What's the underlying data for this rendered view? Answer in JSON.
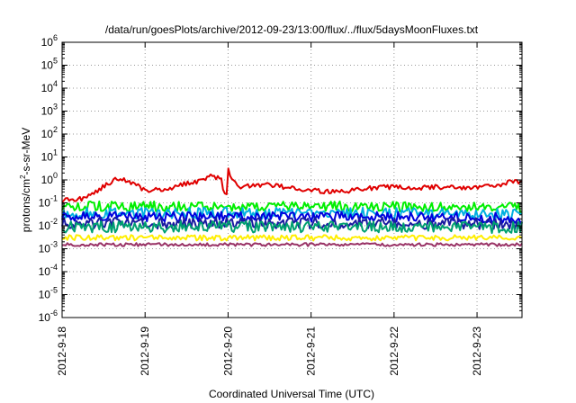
{
  "chart_data": {
    "type": "line",
    "title": "/data/run/goesPlots/archive/2012-09-23/13:00/flux/../flux/5daysMoonFluxes.txt",
    "xlabel": "Coordinated Universal Time (UTC)",
    "ylabel": "protons/cm^2-s-sr-MeV",
    "ylabel_base": "protons/cm",
    "ylabel_sup": "2",
    "ylabel_rest": "-s-sr-MeV",
    "x_scale": "time",
    "x_range": [
      "2012-09-18T00:00",
      "2012-09-23T13:00"
    ],
    "x_ticks": [
      {
        "date": "2012-09-18T00:00",
        "label": "2012-9-18"
      },
      {
        "date": "2012-09-19T00:00",
        "label": "2012-9-19"
      },
      {
        "date": "2012-09-20T00:00",
        "label": "2012-9-20"
      },
      {
        "date": "2012-09-21T00:00",
        "label": "2012-9-21"
      },
      {
        "date": "2012-09-22T00:00",
        "label": "2012-9-22"
      },
      {
        "date": "2012-09-23T00:00",
        "label": "2012-9-23"
      }
    ],
    "y_scale": "log",
    "ylim": [
      1e-06,
      1000000.0
    ],
    "y_ticks": [
      {
        "value": 1e-06,
        "base": "10",
        "exp": "-6"
      },
      {
        "value": 1e-05,
        "base": "10",
        "exp": "-5"
      },
      {
        "value": 0.0001,
        "base": "10",
        "exp": "-4"
      },
      {
        "value": 0.001,
        "base": "10",
        "exp": "-3"
      },
      {
        "value": 0.01,
        "base": "10",
        "exp": "-2"
      },
      {
        "value": 0.1,
        "base": "10",
        "exp": "-1"
      },
      {
        "value": 1,
        "base": "10",
        "exp": "0"
      },
      {
        "value": 10,
        "base": "10",
        "exp": "1"
      },
      {
        "value": 100,
        "base": "10",
        "exp": "2"
      },
      {
        "value": 1000,
        "base": "10",
        "exp": "3"
      },
      {
        "value": 10000,
        "base": "10",
        "exp": "4"
      },
      {
        "value": 100000,
        "base": "10",
        "exp": "5"
      },
      {
        "value": 1000000,
        "base": "10",
        "exp": "6"
      }
    ],
    "grid": true,
    "legend": "none",
    "series": [
      {
        "color": "#e00000",
        "noise": 0.1,
        "points": [
          [
            "2012-09-18T00:00",
            0.13
          ],
          [
            "2012-09-18T06:00",
            0.15
          ],
          [
            "2012-09-18T12:00",
            0.5
          ],
          [
            "2012-09-18T16:00",
            1.2
          ],
          [
            "2012-09-18T20:00",
            0.8
          ],
          [
            "2012-09-19T00:00",
            0.35
          ],
          [
            "2012-09-19T06:00",
            0.4
          ],
          [
            "2012-09-19T12:00",
            0.7
          ],
          [
            "2012-09-19T16:00",
            0.9
          ],
          [
            "2012-09-19T19:00",
            1.7
          ],
          [
            "2012-09-19T22:00",
            1.0
          ],
          [
            "2012-09-19T23:30",
            0.12
          ],
          [
            "2012-09-20T00:00",
            2.8
          ],
          [
            "2012-09-20T01:00",
            1.0
          ],
          [
            "2012-09-20T03:00",
            0.5
          ],
          [
            "2012-09-20T12:00",
            0.6
          ],
          [
            "2012-09-20T18:00",
            0.45
          ],
          [
            "2012-09-21T00:00",
            0.35
          ],
          [
            "2012-09-21T06:00",
            0.3
          ],
          [
            "2012-09-21T12:00",
            0.35
          ],
          [
            "2012-09-21T18:00",
            0.45
          ],
          [
            "2012-09-22T00:00",
            0.5
          ],
          [
            "2012-09-22T06:00",
            0.45
          ],
          [
            "2012-09-22T12:00",
            0.5
          ],
          [
            "2012-09-22T18:00",
            0.45
          ],
          [
            "2012-09-23T00:00",
            0.5
          ],
          [
            "2012-09-23T06:00",
            0.55
          ],
          [
            "2012-09-23T10:00",
            0.85
          ],
          [
            "2012-09-23T13:00",
            0.8
          ]
        ]
      },
      {
        "color": "#00ee00",
        "noise": 0.22,
        "points": [
          [
            "2012-09-18T00:00",
            0.07
          ],
          [
            "2012-09-19T00:00",
            0.07
          ],
          [
            "2012-09-20T00:00",
            0.07
          ],
          [
            "2012-09-21T00:00",
            0.07
          ],
          [
            "2012-09-22T00:00",
            0.07
          ],
          [
            "2012-09-23T00:00",
            0.07
          ],
          [
            "2012-09-23T13:00",
            0.06
          ]
        ]
      },
      {
        "color": "#00b0e0",
        "noise": 0.25,
        "points": [
          [
            "2012-09-18T00:00",
            0.035
          ],
          [
            "2012-09-20T00:00",
            0.035
          ],
          [
            "2012-09-22T00:00",
            0.035
          ],
          [
            "2012-09-23T13:00",
            0.03
          ]
        ]
      },
      {
        "color": "#0000dd",
        "noise": 0.22,
        "points": [
          [
            "2012-09-18T00:00",
            0.025
          ],
          [
            "2012-09-20T00:00",
            0.025
          ],
          [
            "2012-09-22T00:00",
            0.025
          ],
          [
            "2012-09-23T13:00",
            0.022
          ]
        ]
      },
      {
        "color": "#1a1aa0",
        "noise": 0.25,
        "points": [
          [
            "2012-09-18T00:00",
            0.013
          ],
          [
            "2012-09-20T00:00",
            0.013
          ],
          [
            "2012-09-22T00:00",
            0.013
          ],
          [
            "2012-09-23T13:00",
            0.012
          ]
        ]
      },
      {
        "color": "#00a070",
        "noise": 0.25,
        "points": [
          [
            "2012-09-18T00:00",
            0.009
          ],
          [
            "2012-09-20T00:00",
            0.009
          ],
          [
            "2012-09-22T00:00",
            0.009
          ],
          [
            "2012-09-23T13:00",
            0.0085
          ]
        ]
      },
      {
        "color": "#ffee00",
        "noise": 0.12,
        "points": [
          [
            "2012-09-18T00:00",
            0.003
          ],
          [
            "2012-09-20T00:00",
            0.003
          ],
          [
            "2012-09-22T00:00",
            0.003
          ],
          [
            "2012-09-23T13:00",
            0.003
          ]
        ]
      },
      {
        "color": "#993366",
        "noise": 0.07,
        "points": [
          [
            "2012-09-18T00:00",
            0.0015
          ],
          [
            "2012-09-20T00:00",
            0.0015
          ],
          [
            "2012-09-22T00:00",
            0.0015
          ],
          [
            "2012-09-23T13:00",
            0.0015
          ]
        ]
      }
    ]
  }
}
